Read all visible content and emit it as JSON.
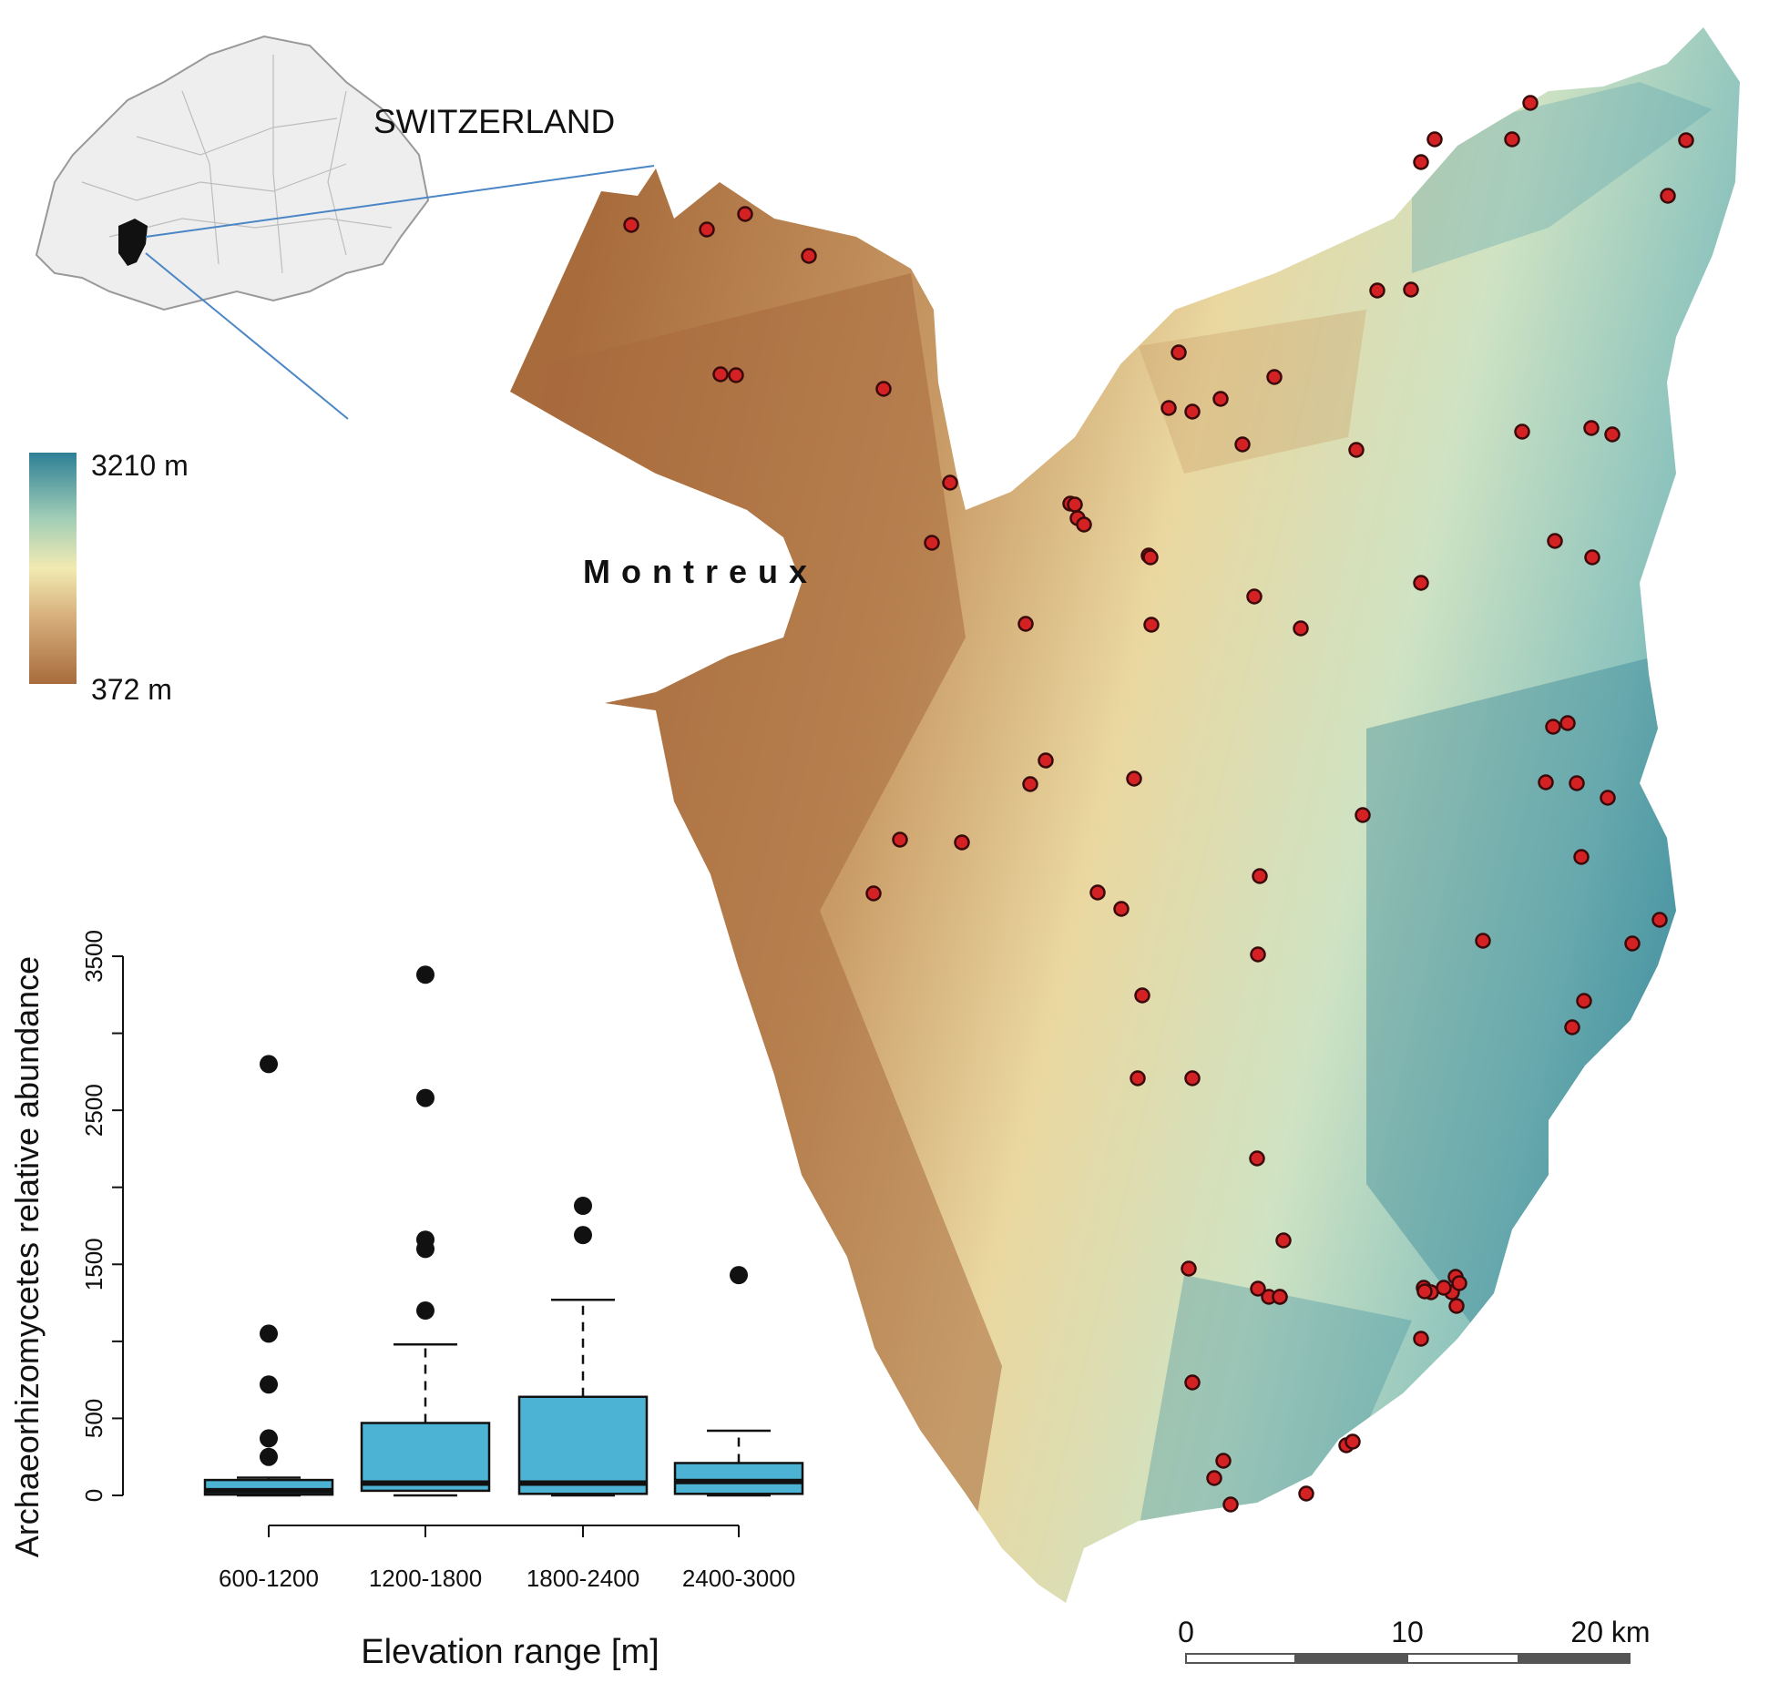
{
  "inset": {
    "label": "SWITZERLAND"
  },
  "map": {
    "place_label": "Montreux",
    "colors": {
      "low": "#a86b3c",
      "mid_low": "#d8b27e",
      "mid": "#f2eab2",
      "mid_high": "#9fcdb6",
      "high": "#2e7f96",
      "lake": "#ffffff",
      "site_fill": "#d42124",
      "site_stroke": "#3a0a0a"
    },
    "sampling_sites_count": 88
  },
  "elevation_legend": {
    "max_label": "3210 m",
    "min_label": "372 m"
  },
  "scale_bar": {
    "ticks": [
      "0",
      "10",
      "20 km"
    ]
  },
  "chart_data": {
    "type": "box",
    "ylabel": "Archaeorhizomycetes relative abundance",
    "xlabel": "Elevation range [m]",
    "ylim": [
      0,
      3500
    ],
    "yticks": [
      0,
      500,
      1500,
      2500,
      3500
    ],
    "categories": [
      "600-1200",
      "1200-1800",
      "1800-2400",
      "2400-3000"
    ],
    "box_color": "#4db3d4",
    "boxes": [
      {
        "category": "600-1200",
        "whisker_low": 0,
        "q1": 5,
        "median": 30,
        "q3": 100,
        "whisker_high": 115,
        "outliers": [
          2800,
          1050,
          720,
          370,
          250
        ]
      },
      {
        "category": "1200-1800",
        "whisker_low": 0,
        "q1": 30,
        "median": 80,
        "q3": 470,
        "whisker_high": 980,
        "outliers": [
          3380,
          2580,
          1660,
          1600,
          1200
        ]
      },
      {
        "category": "1800-2400",
        "whisker_low": 0,
        "q1": 10,
        "median": 80,
        "q3": 640,
        "whisker_high": 1270,
        "outliers": [
          1880,
          1690
        ]
      },
      {
        "category": "2400-3000",
        "whisker_low": 0,
        "q1": 10,
        "median": 90,
        "q3": 210,
        "whisker_high": 420,
        "outliers": [
          1430
        ]
      }
    ]
  }
}
